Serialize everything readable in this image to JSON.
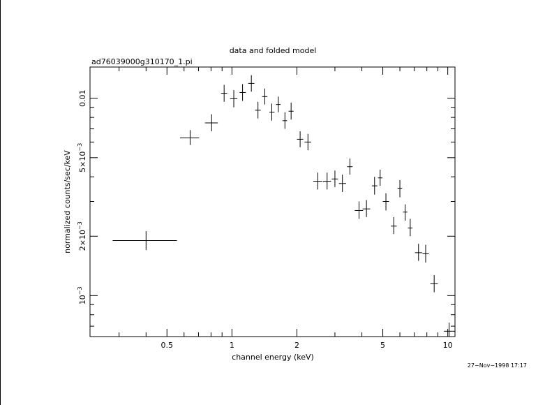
{
  "chart_data": {
    "type": "scatter",
    "title": "data and folded model",
    "subtitle": "ad76039000g310170_1.pi",
    "xlabel": "channel energy (keV)",
    "ylabel": "normalized counts/sec/keV",
    "x_scale": "log",
    "y_scale": "log",
    "xlim": [
      0.22,
      10.8
    ],
    "ylim": [
      0.00062,
      0.0144
    ],
    "x_ticks": [
      {
        "value": 0.5,
        "label": "0.5"
      },
      {
        "value": 1,
        "label": "1"
      },
      {
        "value": 2,
        "label": "2"
      },
      {
        "value": 5,
        "label": "5"
      },
      {
        "value": 10,
        "label": "10"
      }
    ],
    "y_ticks": [
      {
        "value": 0.001,
        "label_base": "10",
        "label_exp": "−3"
      },
      {
        "value": 0.002,
        "label_base": "2×10",
        "label_exp": "−3"
      },
      {
        "value": 0.005,
        "label_base": "5×10",
        "label_exp": "−3"
      },
      {
        "value": 0.01,
        "label_base": "0.01",
        "label_exp": ""
      }
    ],
    "points": [
      {
        "x": 0.4,
        "xlo": 0.28,
        "xhi": 0.556,
        "y": 0.0019,
        "ylo": 0.0017,
        "yhi": 0.00212
      },
      {
        "x": 0.64,
        "xlo": 0.575,
        "xhi": 0.705,
        "y": 0.0063,
        "ylo": 0.0058,
        "yhi": 0.0069
      },
      {
        "x": 0.805,
        "xlo": 0.75,
        "xhi": 0.86,
        "y": 0.0075,
        "ylo": 0.0068,
        "yhi": 0.0083
      },
      {
        "x": 0.92,
        "xlo": 0.89,
        "xhi": 0.95,
        "y": 0.0106,
        "ylo": 0.0096,
        "yhi": 0.0117
      },
      {
        "x": 1.02,
        "xlo": 0.98,
        "xhi": 1.06,
        "y": 0.00995,
        "ylo": 0.009,
        "yhi": 0.011
      },
      {
        "x": 1.12,
        "xlo": 1.085,
        "xhi": 1.16,
        "y": 0.0107,
        "ylo": 0.0097,
        "yhi": 0.0118
      },
      {
        "x": 1.23,
        "xlo": 1.19,
        "xhi": 1.27,
        "y": 0.0119,
        "ylo": 0.0108,
        "yhi": 0.0131
      },
      {
        "x": 1.32,
        "xlo": 1.28,
        "xhi": 1.36,
        "y": 0.0087,
        "ylo": 0.0079,
        "yhi": 0.0096
      },
      {
        "x": 1.42,
        "xlo": 1.38,
        "xhi": 1.46,
        "y": 0.0102,
        "ylo": 0.0093,
        "yhi": 0.0112
      },
      {
        "x": 1.53,
        "xlo": 1.49,
        "xhi": 1.575,
        "y": 0.0085,
        "ylo": 0.0077,
        "yhi": 0.0094
      },
      {
        "x": 1.64,
        "xlo": 1.6,
        "xhi": 1.68,
        "y": 0.0093,
        "ylo": 0.0085,
        "yhi": 0.0102
      },
      {
        "x": 1.76,
        "xlo": 1.715,
        "xhi": 1.8,
        "y": 0.0077,
        "ylo": 0.007,
        "yhi": 0.0085
      },
      {
        "x": 1.88,
        "xlo": 1.83,
        "xhi": 1.93,
        "y": 0.0086,
        "ylo": 0.0078,
        "yhi": 0.0095
      },
      {
        "x": 2.07,
        "xlo": 2.0,
        "xhi": 2.14,
        "y": 0.0062,
        "ylo": 0.00565,
        "yhi": 0.0068
      },
      {
        "x": 2.25,
        "xlo": 2.17,
        "xhi": 2.33,
        "y": 0.006,
        "ylo": 0.00545,
        "yhi": 0.0066
      },
      {
        "x": 2.5,
        "xlo": 2.38,
        "xhi": 2.62,
        "y": 0.0038,
        "ylo": 0.00345,
        "yhi": 0.0042
      },
      {
        "x": 2.76,
        "xlo": 2.64,
        "xhi": 2.88,
        "y": 0.0038,
        "ylo": 0.00345,
        "yhi": 0.0042
      },
      {
        "x": 3.0,
        "xlo": 2.9,
        "xhi": 3.1,
        "y": 0.0039,
        "ylo": 0.00355,
        "yhi": 0.0043
      },
      {
        "x": 3.25,
        "xlo": 3.13,
        "xhi": 3.38,
        "y": 0.0037,
        "ylo": 0.00335,
        "yhi": 0.0041
      },
      {
        "x": 3.52,
        "xlo": 3.42,
        "xhi": 3.62,
        "y": 0.0045,
        "ylo": 0.0041,
        "yhi": 0.00495
      },
      {
        "x": 3.88,
        "xlo": 3.71,
        "xhi": 4.05,
        "y": 0.0027,
        "ylo": 0.00245,
        "yhi": 0.003
      },
      {
        "x": 4.2,
        "xlo": 4.03,
        "xhi": 4.37,
        "y": 0.00275,
        "ylo": 0.0025,
        "yhi": 0.00305
      },
      {
        "x": 4.58,
        "xlo": 4.45,
        "xhi": 4.72,
        "y": 0.0036,
        "ylo": 0.00325,
        "yhi": 0.004
      },
      {
        "x": 4.86,
        "xlo": 4.75,
        "xhi": 4.98,
        "y": 0.00395,
        "ylo": 0.0036,
        "yhi": 0.00435
      },
      {
        "x": 5.17,
        "xlo": 5.0,
        "xhi": 5.34,
        "y": 0.003,
        "ylo": 0.0027,
        "yhi": 0.0033
      },
      {
        "x": 5.62,
        "xlo": 5.45,
        "xhi": 5.8,
        "y": 0.00225,
        "ylo": 0.00205,
        "yhi": 0.0025
      },
      {
        "x": 6.0,
        "xlo": 5.85,
        "xhi": 6.15,
        "y": 0.0035,
        "ylo": 0.00315,
        "yhi": 0.00385
      },
      {
        "x": 6.35,
        "xlo": 6.2,
        "xhi": 6.5,
        "y": 0.00265,
        "ylo": 0.0024,
        "yhi": 0.0029
      },
      {
        "x": 6.7,
        "xlo": 6.53,
        "xhi": 6.87,
        "y": 0.0022,
        "ylo": 0.002,
        "yhi": 0.00245
      },
      {
        "x": 7.32,
        "xlo": 7.05,
        "xhi": 7.6,
        "y": 0.00165,
        "ylo": 0.0015,
        "yhi": 0.00183
      },
      {
        "x": 7.9,
        "xlo": 7.63,
        "xhi": 8.18,
        "y": 0.00163,
        "ylo": 0.00147,
        "yhi": 0.00181
      },
      {
        "x": 8.65,
        "xlo": 8.3,
        "xhi": 9.0,
        "y": 0.00115,
        "ylo": 0.00104,
        "yhi": 0.00127
      },
      {
        "x": 10.15,
        "xlo": 9.6,
        "xhi": 10.8,
        "y": 0.00066,
        "ylo": 0.0006,
        "yhi": 0.00073
      }
    ]
  },
  "timestamp": "27−Nov−1998 17:17"
}
